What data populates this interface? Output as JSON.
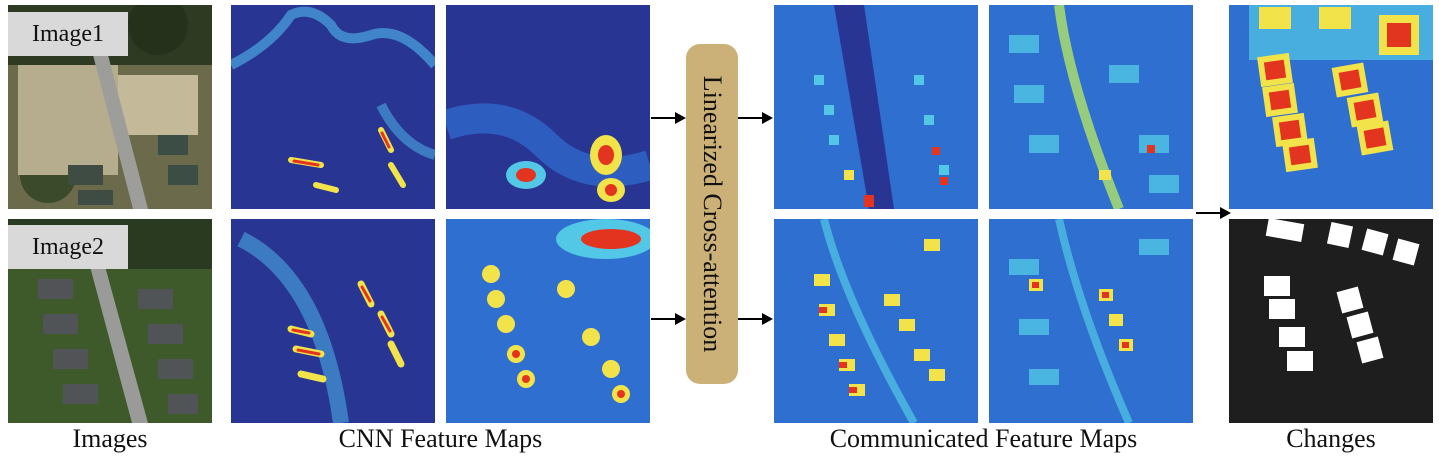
{
  "labels": {
    "image1": "Image1",
    "image2": "Image2"
  },
  "module": {
    "label": "Linearized Cross-attention"
  },
  "captions": {
    "images": "Images",
    "cnn": "CNN Feature Maps",
    "communicated": "Communicated Feature Maps",
    "changes": "Changes"
  },
  "colors": {
    "map_background": "#283593",
    "heat_low": "#2f6fd0",
    "heat_mid": "#52c7e6",
    "heat_high": "#f2e34a",
    "heat_peak": "#e3341f",
    "module_fill": "#cbb177",
    "mask_background": "#1e1e1e",
    "mask_change": "#ffffff"
  }
}
